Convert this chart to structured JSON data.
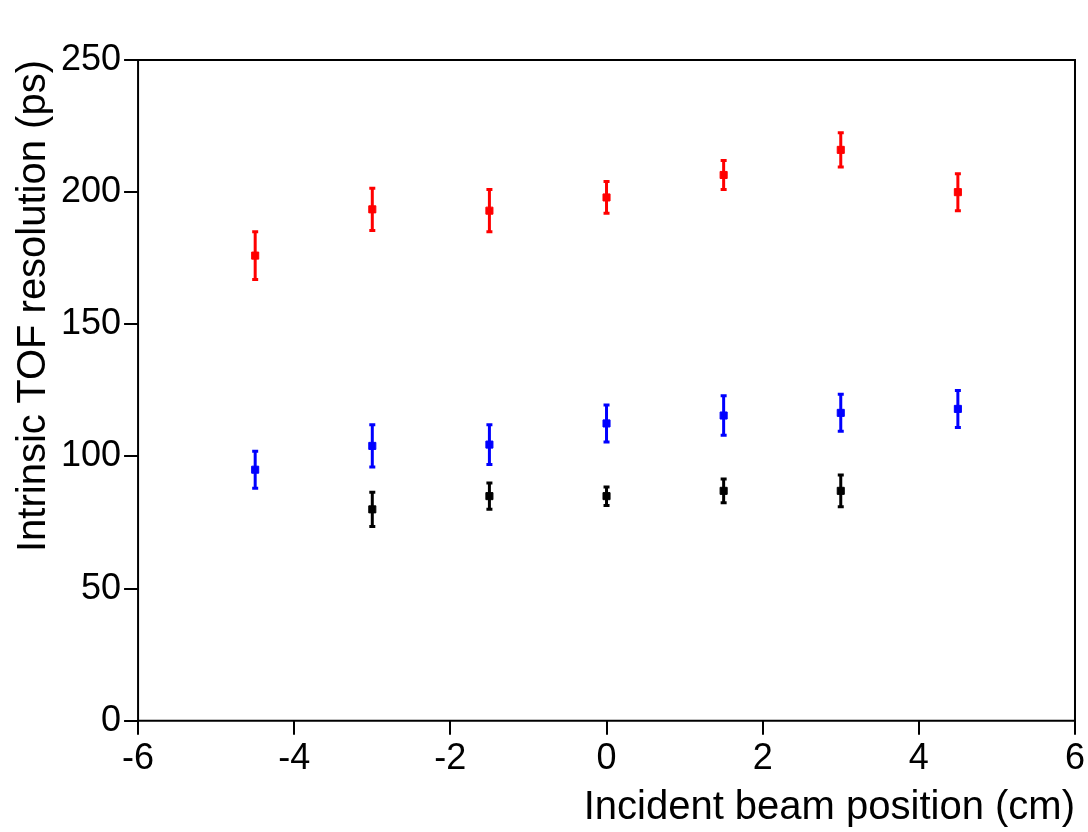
{
  "chart_data": {
    "type": "scatter",
    "xlabel": "Incident beam position (cm)",
    "ylabel": "Intrinsic TOF resolution (ps)",
    "xlim": [
      -6,
      6
    ],
    "xticks": [
      -6,
      -4,
      -2,
      0,
      2,
      4,
      6
    ],
    "ylim": [
      0,
      250
    ],
    "yticks": [
      0,
      50,
      100,
      150,
      200,
      250
    ],
    "grid": false,
    "legend": false,
    "marker": "square",
    "series": [
      {
        "color": "#ff0000",
        "x": [
          -4.5,
          -3,
          -1.5,
          0,
          1.5,
          3,
          4.5
        ],
        "values": [
          176,
          193.5,
          193,
          198,
          206.5,
          216,
          200
        ],
        "errors": [
          9,
          8,
          8,
          6,
          5.5,
          6.5,
          7
        ]
      },
      {
        "color": "#0000ff",
        "x": [
          -4.5,
          -3,
          -1.5,
          0,
          1.5,
          3,
          4.5
        ],
        "values": [
          95,
          104,
          104.5,
          112.5,
          115.5,
          116.5,
          118
        ],
        "errors": [
          7,
          8,
          7.5,
          7,
          7.5,
          7,
          7
        ]
      },
      {
        "color": "#000000",
        "x": [
          -3,
          -1.5,
          0,
          1.5,
          3
        ],
        "values": [
          80,
          85,
          85,
          87,
          87
        ],
        "errors": [
          6.5,
          5,
          3.5,
          4.5,
          6
        ]
      }
    ]
  }
}
